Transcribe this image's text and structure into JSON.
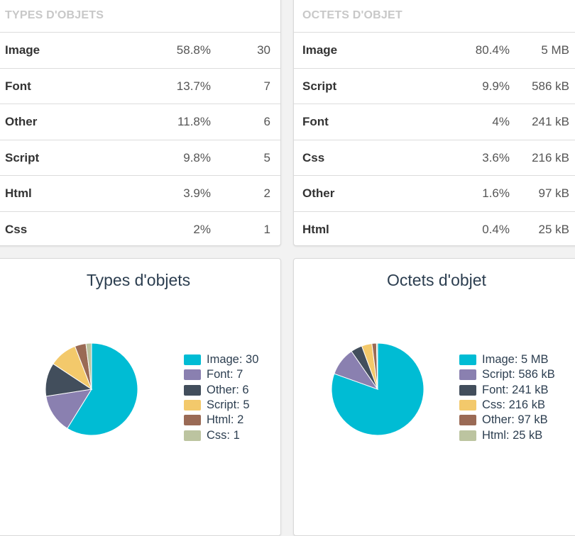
{
  "types_table": {
    "header": "TYPES D'OBJETS",
    "rows": [
      {
        "name": "Image",
        "pct": "58.8%",
        "value": "30"
      },
      {
        "name": "Font",
        "pct": "13.7%",
        "value": "7"
      },
      {
        "name": "Other",
        "pct": "11.8%",
        "value": "6"
      },
      {
        "name": "Script",
        "pct": "9.8%",
        "value": "5"
      },
      {
        "name": "Html",
        "pct": "3.9%",
        "value": "2"
      },
      {
        "name": "Css",
        "pct": "2%",
        "value": "1"
      }
    ]
  },
  "bytes_table": {
    "header": "OCTETS D'OBJET",
    "rows": [
      {
        "name": "Image",
        "pct": "80.4%",
        "value": "5 MB"
      },
      {
        "name": "Script",
        "pct": "9.9%",
        "value": "586 kB"
      },
      {
        "name": "Font",
        "pct": "4%",
        "value": "241 kB"
      },
      {
        "name": "Css",
        "pct": "3.6%",
        "value": "216 kB"
      },
      {
        "name": "Other",
        "pct": "1.6%",
        "value": "97 kB"
      },
      {
        "name": "Html",
        "pct": "0.4%",
        "value": "25 kB"
      }
    ]
  },
  "chart_data": [
    {
      "type": "pie",
      "title": "Types d'objets",
      "categories": [
        "Image",
        "Font",
        "Other",
        "Script",
        "Html",
        "Css"
      ],
      "values": [
        30,
        7,
        6,
        5,
        2,
        1
      ],
      "legend_labels": [
        "Image: 30",
        "Font: 7",
        "Other: 6",
        "Script: 5",
        "Html: 2",
        "Css: 1"
      ],
      "colors": [
        "#00bcd4",
        "#8a80b0",
        "#424e5c",
        "#f3c96b",
        "#9a6a55",
        "#bcc4a0"
      ],
      "legend_position": "right"
    },
    {
      "type": "pie",
      "title": "Octets d'objet",
      "categories": [
        "Image",
        "Script",
        "Font",
        "Css",
        "Other",
        "Html"
      ],
      "values": [
        80.4,
        9.9,
        4,
        3.6,
        1.6,
        0.4
      ],
      "legend_labels": [
        "Image: 5 MB",
        "Script: 586 kB",
        "Font: 241 kB",
        "Css: 216 kB",
        "Other: 97 kB",
        "Html: 25 kB"
      ],
      "colors": [
        "#00bcd4",
        "#8a80b0",
        "#424e5c",
        "#f3c96b",
        "#9a6a55",
        "#bcc4a0"
      ],
      "legend_position": "right"
    }
  ]
}
